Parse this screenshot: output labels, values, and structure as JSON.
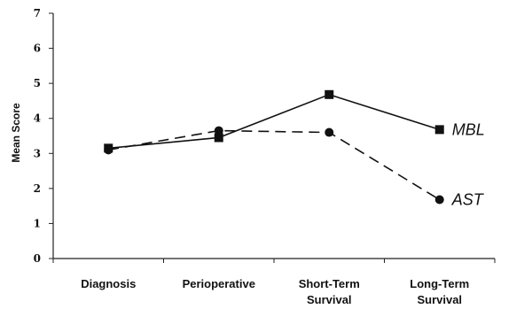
{
  "chart_data": {
    "type": "line",
    "categories": [
      [
        "Diagnosis"
      ],
      [
        "Perioperative"
      ],
      [
        "Short-Term",
        "Survival"
      ],
      [
        "Long-Term",
        "Survival"
      ]
    ],
    "ylabel": "Mean Score",
    "ylim": [
      0,
      7
    ],
    "yticks": [
      0,
      1,
      2,
      3,
      4,
      5,
      6,
      7
    ],
    "grid": false,
    "series": [
      {
        "name": "MBL",
        "values": [
          3.15,
          3.45,
          4.68,
          3.68
        ],
        "line_style": "solid",
        "marker": "square",
        "color": "#111111"
      },
      {
        "name": "AST",
        "values": [
          3.1,
          3.65,
          3.6,
          1.68
        ],
        "line_style": "dashed",
        "marker": "circle",
        "color": "#111111"
      }
    ]
  }
}
